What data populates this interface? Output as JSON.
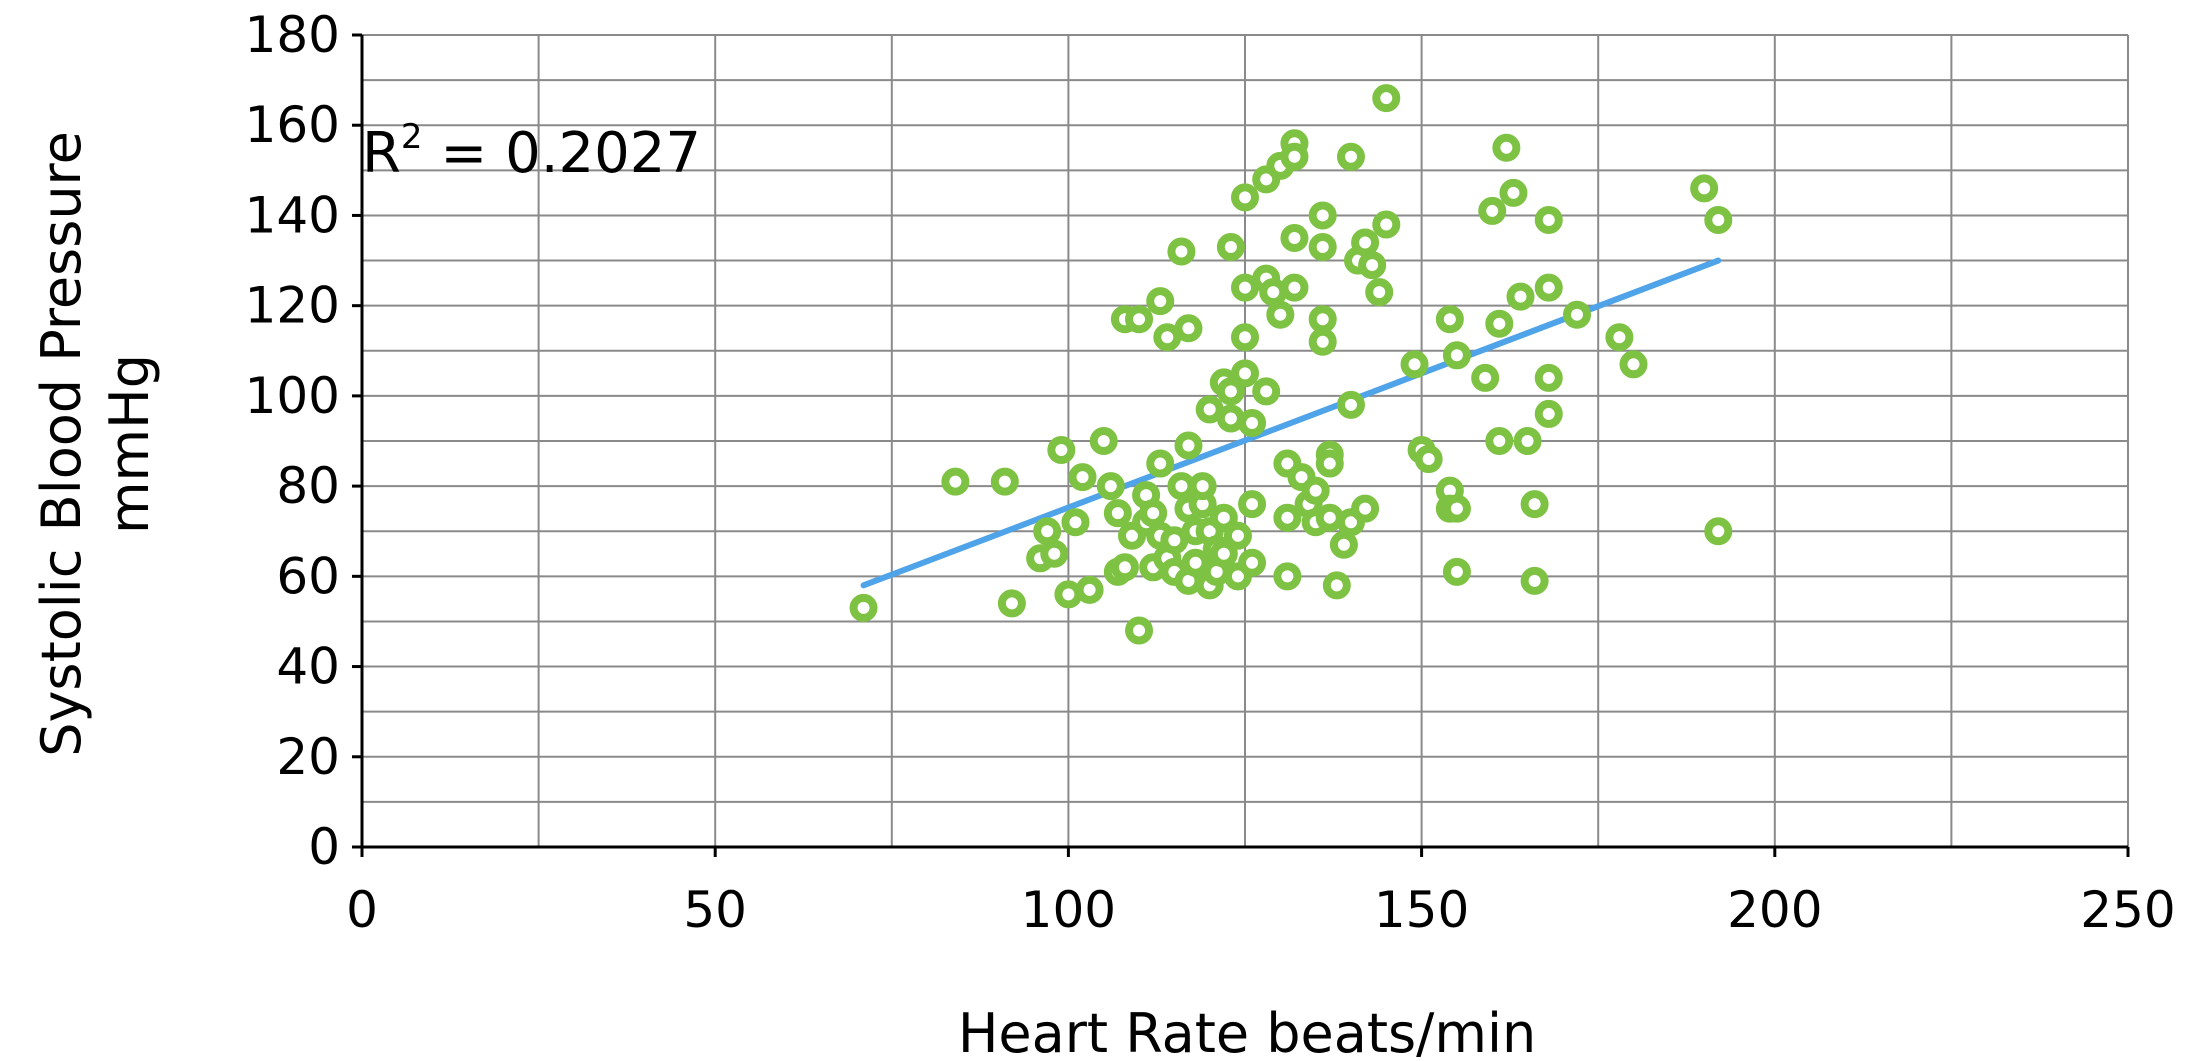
{
  "chart_data": {
    "type": "scatter",
    "xlabel": "Heart Rate beats/min",
    "ylabel_line1": "Systolic Blood Pressure",
    "ylabel_line2": "mmHg",
    "xlim": [
      0,
      250
    ],
    "ylim": [
      0,
      180
    ],
    "x_ticks": [
      0,
      50,
      100,
      150,
      200,
      250
    ],
    "y_ticks": [
      0,
      20,
      40,
      60,
      80,
      100,
      120,
      140,
      160,
      180
    ],
    "x_minor_step": 25,
    "y_minor_step": 10,
    "grid": true,
    "annotation": {
      "prefix": "R",
      "sup": "2",
      "suffix": " = 0.2027"
    },
    "marker_color": "#7dc242",
    "trendline_color": "#4fa3e8",
    "trendline": {
      "x": [
        71,
        192
      ],
      "y": [
        58,
        130
      ]
    },
    "points": [
      [
        71,
        53
      ],
      [
        84,
        81
      ],
      [
        91,
        81
      ],
      [
        92,
        54
      ],
      [
        96,
        64
      ],
      [
        97,
        70
      ],
      [
        98,
        65
      ],
      [
        99,
        88
      ],
      [
        100,
        56
      ],
      [
        101,
        72
      ],
      [
        102,
        82
      ],
      [
        103,
        57
      ],
      [
        105,
        90
      ],
      [
        106,
        80
      ],
      [
        107,
        74
      ],
      [
        107,
        61
      ],
      [
        108,
        62
      ],
      [
        108,
        117
      ],
      [
        109,
        69
      ],
      [
        110,
        117
      ],
      [
        110,
        48
      ],
      [
        111,
        72
      ],
      [
        111,
        78
      ],
      [
        112,
        62
      ],
      [
        112,
        74
      ],
      [
        113,
        121
      ],
      [
        113,
        85
      ],
      [
        113,
        69
      ],
      [
        114,
        113
      ],
      [
        114,
        64
      ],
      [
        115,
        68
      ],
      [
        115,
        61
      ],
      [
        116,
        132
      ],
      [
        116,
        80
      ],
      [
        117,
        115
      ],
      [
        117,
        89
      ],
      [
        117,
        75
      ],
      [
        117,
        59
      ],
      [
        118,
        70
      ],
      [
        118,
        63
      ],
      [
        119,
        76
      ],
      [
        119,
        80
      ],
      [
        120,
        97
      ],
      [
        120,
        70
      ],
      [
        120,
        58
      ],
      [
        121,
        66
      ],
      [
        121,
        61
      ],
      [
        122,
        103
      ],
      [
        122,
        73
      ],
      [
        122,
        65
      ],
      [
        123,
        95
      ],
      [
        123,
        133
      ],
      [
        123,
        101
      ],
      [
        124,
        69
      ],
      [
        124,
        60
      ],
      [
        125,
        144
      ],
      [
        125,
        124
      ],
      [
        125,
        113
      ],
      [
        125,
        105
      ],
      [
        126,
        94
      ],
      [
        126,
        76
      ],
      [
        126,
        63
      ],
      [
        128,
        148
      ],
      [
        128,
        126
      ],
      [
        128,
        101
      ],
      [
        129,
        123
      ],
      [
        130,
        151
      ],
      [
        130,
        118
      ],
      [
        131,
        85
      ],
      [
        131,
        73
      ],
      [
        131,
        60
      ],
      [
        132,
        156
      ],
      [
        132,
        153
      ],
      [
        132,
        135
      ],
      [
        132,
        124
      ],
      [
        133,
        82
      ],
      [
        134,
        76
      ],
      [
        135,
        79
      ],
      [
        135,
        72
      ],
      [
        136,
        140
      ],
      [
        136,
        133
      ],
      [
        136,
        117
      ],
      [
        136,
        112
      ],
      [
        137,
        87
      ],
      [
        137,
        85
      ],
      [
        137,
        73
      ],
      [
        138,
        58
      ],
      [
        139,
        67
      ],
      [
        140,
        153
      ],
      [
        140,
        98
      ],
      [
        140,
        72
      ],
      [
        141,
        130
      ],
      [
        142,
        134
      ],
      [
        142,
        75
      ],
      [
        143,
        129
      ],
      [
        144,
        123
      ],
      [
        145,
        166
      ],
      [
        145,
        138
      ],
      [
        149,
        107
      ],
      [
        150,
        88
      ],
      [
        151,
        86
      ],
      [
        154,
        117
      ],
      [
        154,
        79
      ],
      [
        154,
        75
      ],
      [
        155,
        109
      ],
      [
        155,
        75
      ],
      [
        155,
        61
      ],
      [
        159,
        104
      ],
      [
        160,
        141
      ],
      [
        161,
        116
      ],
      [
        161,
        90
      ],
      [
        162,
        155
      ],
      [
        163,
        145
      ],
      [
        164,
        122
      ],
      [
        165,
        90
      ],
      [
        166,
        76
      ],
      [
        166,
        59
      ],
      [
        168,
        139
      ],
      [
        168,
        124
      ],
      [
        168,
        104
      ],
      [
        168,
        96
      ],
      [
        172,
        118
      ],
      [
        178,
        113
      ],
      [
        180,
        107
      ],
      [
        190,
        146
      ],
      [
        192,
        139
      ],
      [
        192,
        70
      ]
    ]
  }
}
